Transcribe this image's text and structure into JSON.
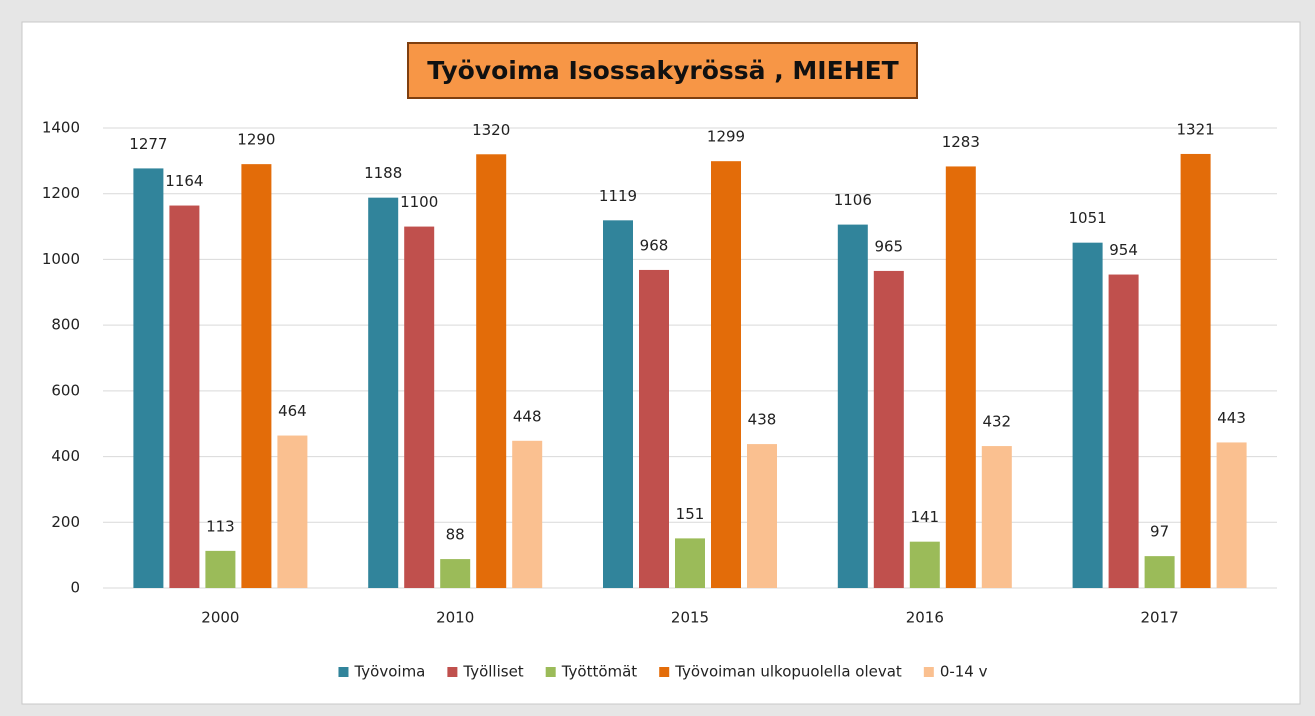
{
  "chart_data": {
    "type": "bar",
    "title": "Työvoima Isossakyrössä , MIEHET",
    "categories": [
      "2000",
      "2010",
      "2015",
      "2016",
      "2017"
    ],
    "series": [
      {
        "name": "Työvoima",
        "color": "#31849b",
        "values": [
          1277,
          1188,
          1119,
          1106,
          1051
        ]
      },
      {
        "name": "Työlliset",
        "color": "#c0504d",
        "values": [
          1164,
          1100,
          968,
          965,
          954
        ]
      },
      {
        "name": "Työttömät",
        "color": "#9bbb59",
        "values": [
          113,
          88,
          151,
          141,
          97
        ]
      },
      {
        "name": "Työvoiman ulkopuolella olevat",
        "color": "#e36c09",
        "values": [
          1290,
          1320,
          1299,
          1283,
          1321
        ]
      },
      {
        "name": "0-14 v",
        "color": "#fac090",
        "values": [
          464,
          448,
          438,
          432,
          443
        ]
      }
    ],
    "ylim": [
      0,
      1400
    ],
    "yticks": [
      0,
      200,
      400,
      600,
      800,
      1000,
      1200,
      1400
    ],
    "grid": true,
    "legend": "bottom"
  }
}
